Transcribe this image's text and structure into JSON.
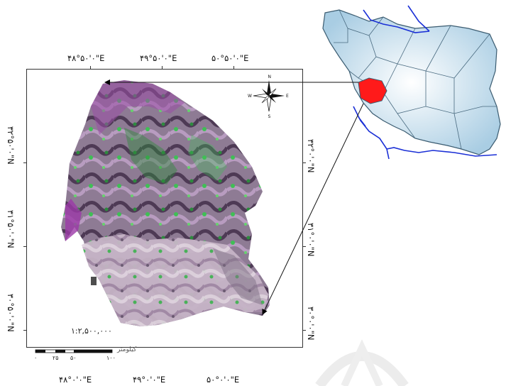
{
  "top_coords": [
    "۴۸°۵۰'۰\"E",
    "۴۹°۵۰'۰\"E",
    "۵۰°۵۰'۰\"E"
  ],
  "bottom_coords": [
    "۴۸°۰'۰\"E",
    "۴۹°۰'۰\"E",
    "۵۰°۰'۰\"E"
  ],
  "left_coords": [
    "۳۲°۵۰'۰\"N",
    "۳۱°۵۰'۰\"N",
    "۳۰°۵۰'۰\"N"
  ],
  "right_coords": [
    "۳۲°۰'۰\"N",
    "۳۱°۰'۰\"N",
    "۳۰°۰'۰\"N"
  ],
  "scale": {
    "ratio": "۱:۲,۵۰۰,۰۰۰",
    "unit_label": "کیلومتر",
    "ticks": [
      "۰",
      "۲۵",
      "۵۰",
      "۱۰۰"
    ]
  },
  "colors": {
    "highlight_region": "#ff1a1a",
    "country_fill": "#c9e0ee",
    "country_border": "#3a5b70",
    "water_lines": "#1a2fd6"
  }
}
